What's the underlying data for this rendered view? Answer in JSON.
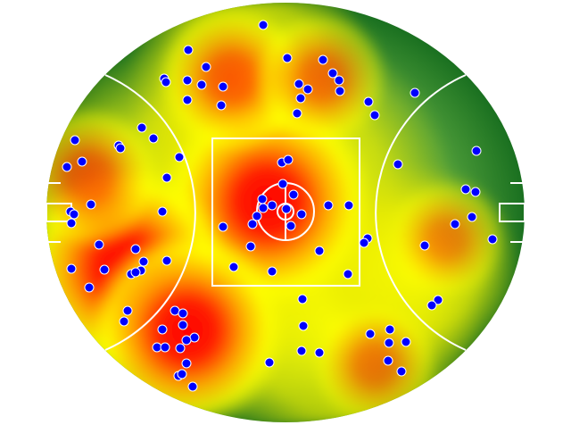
{
  "chart_data": {
    "type": "heatmap",
    "title": "",
    "colors": {
      "field_base": "#2e8b3a",
      "field_edge": "#1a7020",
      "heat_low": "#ffff00",
      "heat_mid": "#ff9900",
      "heat_high": "#ff0000",
      "point_fill": "#0000ff",
      "point_stroke": "#ffffff",
      "lines": "#ffffff"
    },
    "coordinate_note": "",
    "heat_centers": [
      {
        "x": -20,
        "y": 12,
        "intensity": 1.0
      },
      {
        "x": -180,
        "y": -62,
        "intensity": 0.95
      },
      {
        "x": -110,
        "y": -132,
        "intensity": 0.9
      },
      {
        "x": -60,
        "y": 150,
        "intensity": 0.55
      },
      {
        "x": 40,
        "y": 150,
        "intensity": 0.45
      },
      {
        "x": -220,
        "y": 40,
        "intensity": 0.5
      },
      {
        "x": 100,
        "y": -170,
        "intensity": 0.4
      },
      {
        "x": 180,
        "y": -30,
        "intensity": 0.35
      }
    ],
    "points": [
      [
        -25,
        210
      ],
      [
        -109,
        182
      ],
      [
        2,
        173
      ],
      [
        42,
        171
      ],
      [
        -89,
        163
      ],
      [
        53,
        156
      ],
      [
        -136,
        150
      ],
      [
        -134,
        146
      ],
      [
        -110,
        148
      ],
      [
        -94,
        143
      ],
      [
        -70,
        141
      ],
      [
        15,
        144
      ],
      [
        25,
        138
      ],
      [
        60,
        148
      ],
      [
        61,
        136
      ],
      [
        145,
        134
      ],
      [
        -110,
        126
      ],
      [
        -72,
        120
      ],
      [
        17,
        128
      ],
      [
        93,
        124
      ],
      [
        13,
        111
      ],
      [
        100,
        109
      ],
      [
        -161,
        95
      ],
      [
        -148,
        83
      ],
      [
        -236,
        81
      ],
      [
        -187,
        75
      ],
      [
        -185,
        72
      ],
      [
        -119,
        62
      ],
      [
        -228,
        57
      ],
      [
        -245,
        51
      ],
      [
        -4,
        56
      ],
      [
        3,
        59
      ],
      [
        126,
        54
      ],
      [
        214,
        69
      ],
      [
        -133,
        39
      ],
      [
        -3,
        32
      ],
      [
        9,
        20
      ],
      [
        202,
        26
      ],
      [
        213,
        23
      ],
      [
        -218,
        9
      ],
      [
        -26,
        15
      ],
      [
        -15,
        8
      ],
      [
        -25,
        5
      ],
      [
        1,
        4
      ],
      [
        48,
        8
      ],
      [
        71,
        8
      ],
      [
        -241,
        1
      ],
      [
        -237,
        -2
      ],
      [
        -138,
        1
      ],
      [
        -32,
        -4
      ],
      [
        18,
        -2
      ],
      [
        209,
        -5
      ],
      [
        -240,
        -12
      ],
      [
        -37,
        -13
      ],
      [
        6,
        -15
      ],
      [
        -70,
        -16
      ],
      [
        190,
        -13
      ],
      [
        232,
        -30
      ],
      [
        92,
        -29
      ],
      [
        88,
        -34
      ],
      [
        -209,
        -36
      ],
      [
        -39,
        -38
      ],
      [
        38,
        -43
      ],
      [
        156,
        -37
      ],
      [
        -168,
        -41
      ],
      [
        -159,
        -55
      ],
      [
        -133,
        -54
      ],
      [
        -240,
        -63
      ],
      [
        -203,
        -64
      ],
      [
        -58,
        -61
      ],
      [
        -15,
        -66
      ],
      [
        -162,
        -65
      ],
      [
        -173,
        -69
      ],
      [
        -168,
        -67
      ],
      [
        70,
        -69
      ],
      [
        -220,
        -84
      ],
      [
        19,
        -97
      ],
      [
        171,
        -98
      ],
      [
        164,
        -104
      ],
      [
        -177,
        -110
      ],
      [
        -124,
        -110
      ],
      [
        -115,
        -113
      ],
      [
        -181,
        -122
      ],
      [
        -115,
        -126
      ],
      [
        -138,
        -131
      ],
      [
        20,
        -127
      ],
      [
        95,
        -136
      ],
      [
        117,
        -131
      ],
      [
        116,
        -146
      ],
      [
        135,
        -145
      ],
      [
        -102,
        -140
      ],
      [
        -111,
        -143
      ],
      [
        -144,
        -151
      ],
      [
        -135,
        -151
      ],
      [
        -118,
        -152
      ],
      [
        18,
        -155
      ],
      [
        38,
        -157
      ],
      [
        -111,
        -169
      ],
      [
        -18,
        -168
      ],
      [
        115,
        -166
      ],
      [
        130,
        -178
      ],
      [
        -120,
        -183
      ],
      [
        -116,
        -181
      ],
      [
        -104,
        -195
      ]
    ]
  }
}
